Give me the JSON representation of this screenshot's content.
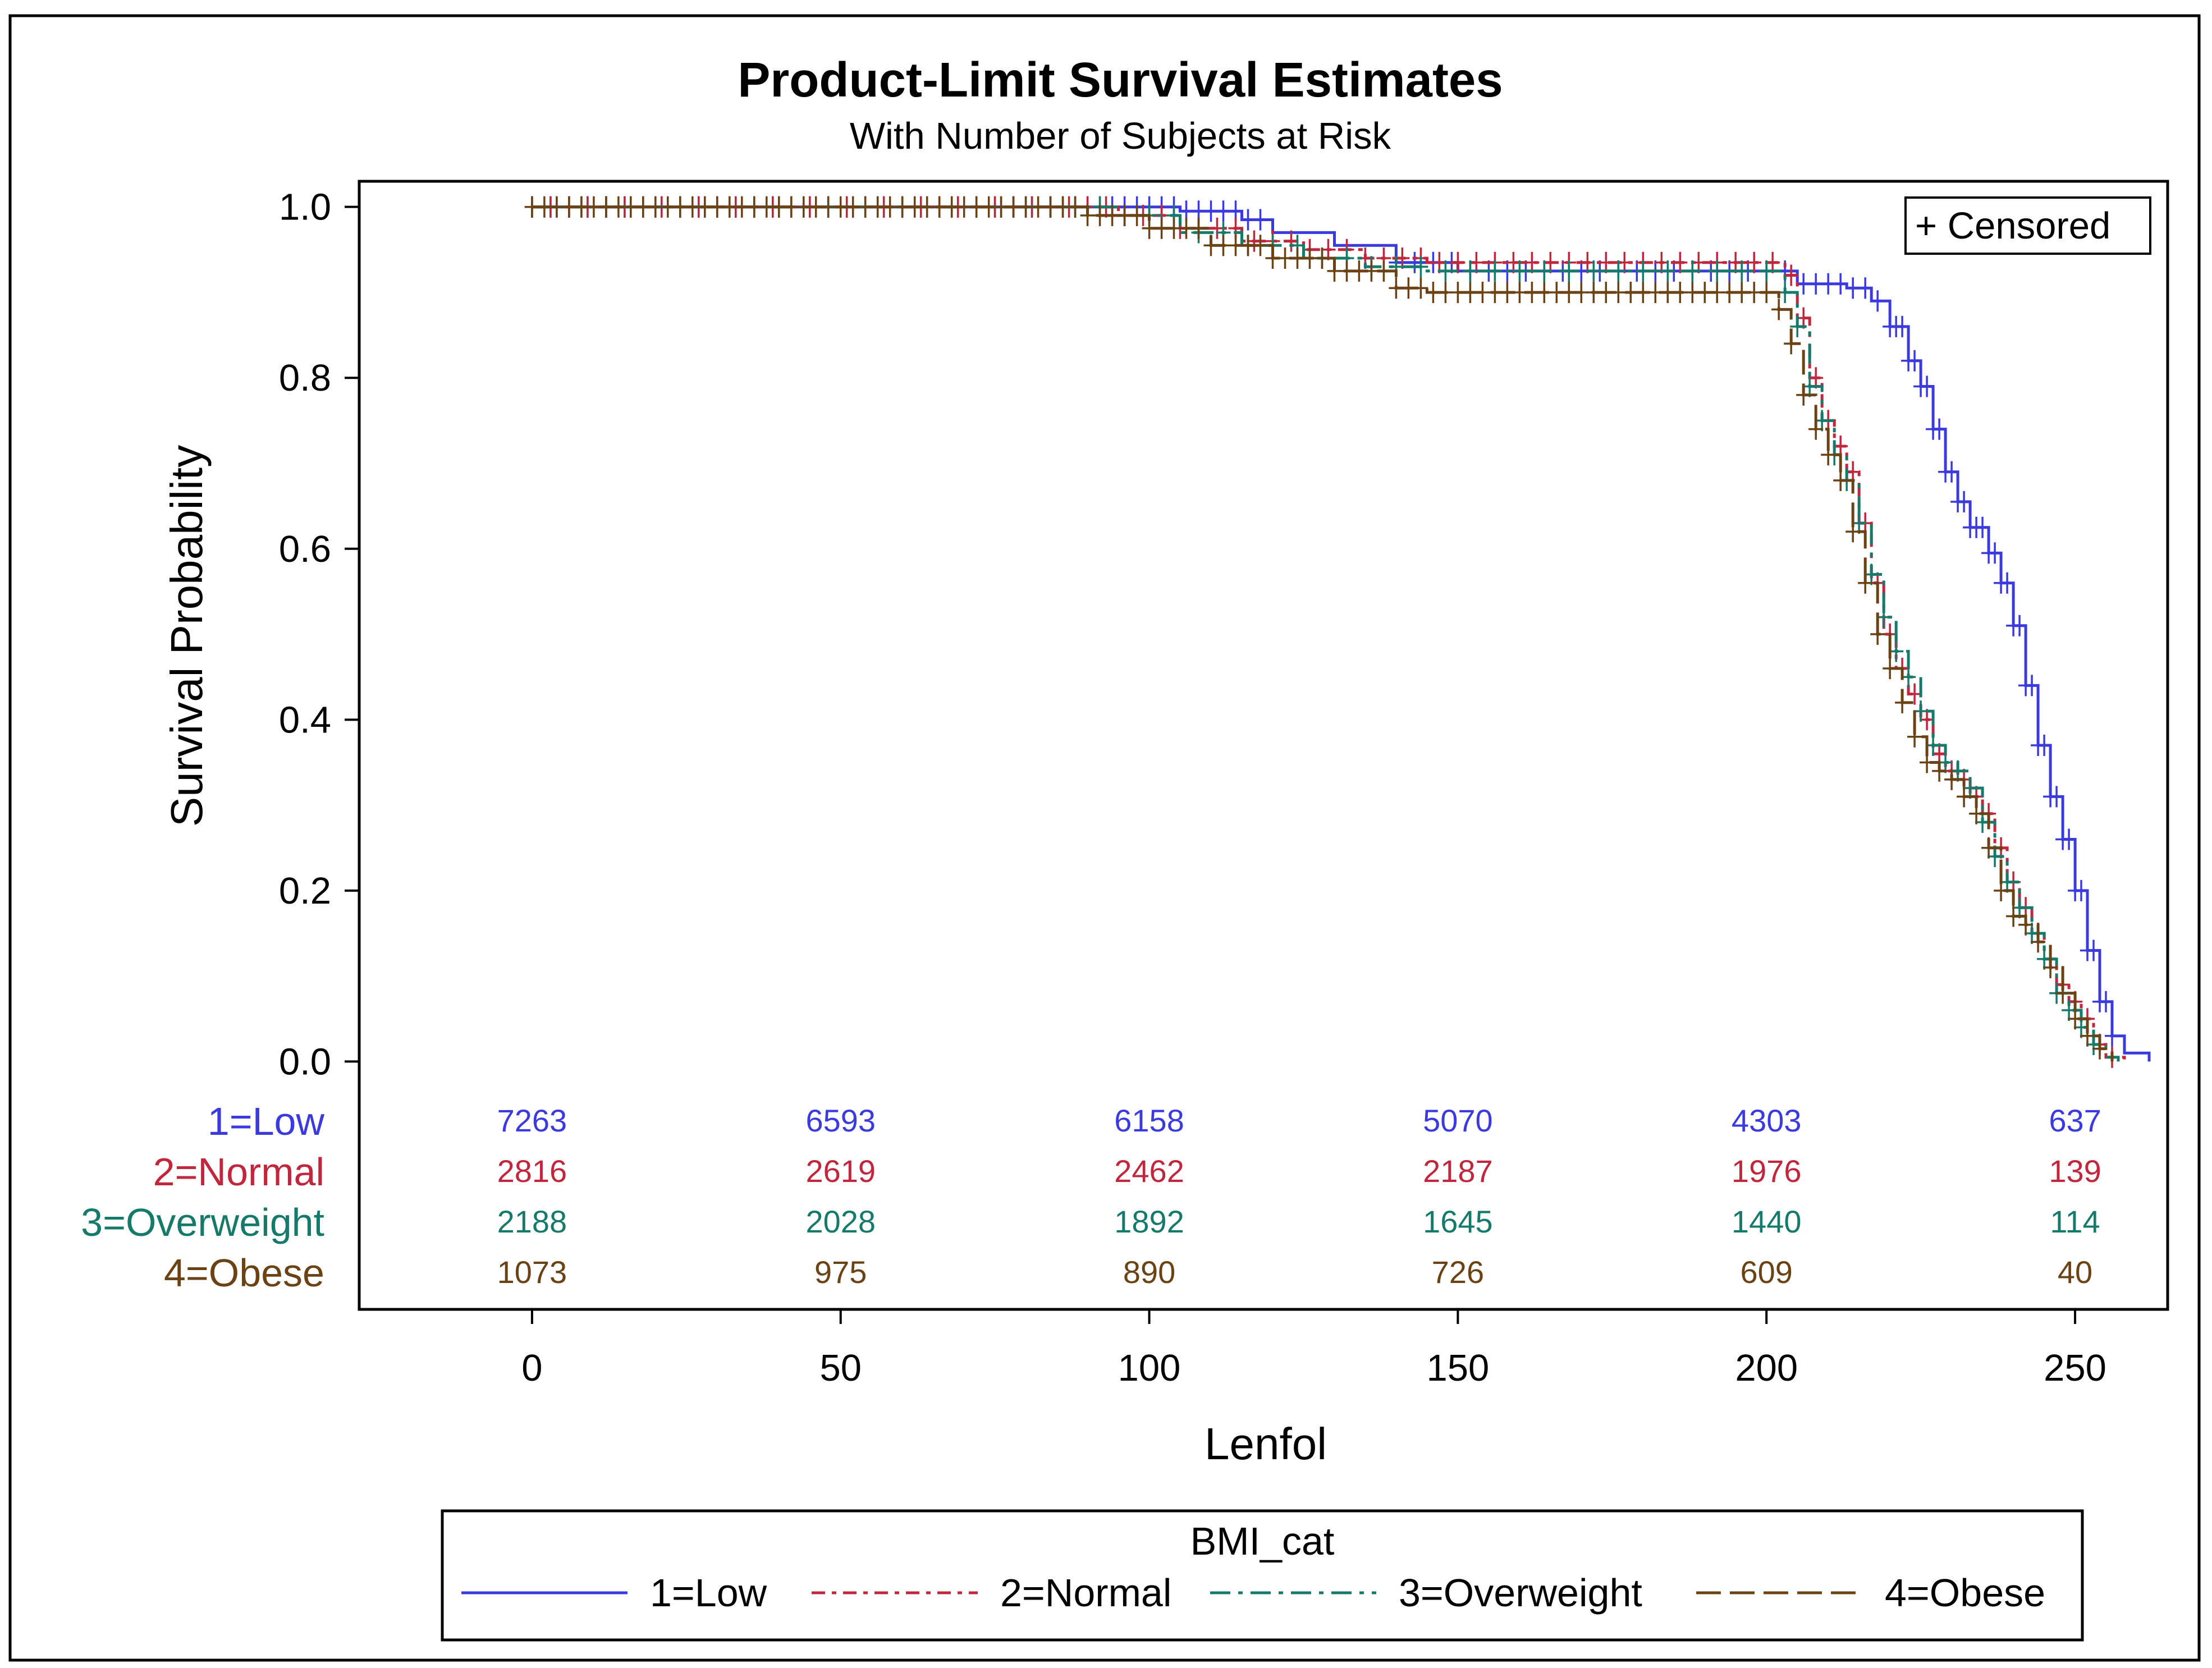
{
  "chart_data": {
    "type": "line",
    "title": "Product-Limit Survival Estimates",
    "subtitle": "With Number of Subjects at Risk",
    "xlabel": "Lenfol",
    "ylabel": "Survival Probability",
    "xlim": [
      -28,
      265
    ],
    "ylim": [
      -0.29,
      1.03
    ],
    "x_ticks": [
      "0",
      "50",
      "100",
      "150",
      "200",
      "250"
    ],
    "y_ticks": [
      "0.0",
      "0.2",
      "0.4",
      "0.6",
      "0.8",
      "1.0"
    ],
    "censored_legend": "+ Censored",
    "legend_title": "BMI_cat",
    "legend_position": "bottom",
    "series": [
      {
        "name": "1=Low",
        "color": "#3a3adf",
        "dash": "",
        "points": [
          [
            0,
            1.0
          ],
          [
            85,
            1.0
          ],
          [
            105,
            0.995
          ],
          [
            115,
            0.985
          ],
          [
            120,
            0.97
          ],
          [
            130,
            0.955
          ],
          [
            140,
            0.935
          ],
          [
            150,
            0.925
          ],
          [
            200,
            0.925
          ],
          [
            205,
            0.91
          ],
          [
            213,
            0.905
          ],
          [
            217,
            0.89
          ],
          [
            220,
            0.86
          ],
          [
            223,
            0.82
          ],
          [
            225,
            0.79
          ],
          [
            227,
            0.74
          ],
          [
            229,
            0.69
          ],
          [
            231,
            0.655
          ],
          [
            233,
            0.625
          ],
          [
            236,
            0.595
          ],
          [
            238,
            0.56
          ],
          [
            240,
            0.51
          ],
          [
            242,
            0.44
          ],
          [
            244,
            0.37
          ],
          [
            246,
            0.31
          ],
          [
            248,
            0.26
          ],
          [
            250,
            0.2
          ],
          [
            252,
            0.13
          ],
          [
            254,
            0.07
          ],
          [
            256,
            0.03
          ],
          [
            258,
            0.01
          ],
          [
            262,
            0.0
          ]
        ],
        "censored_x": [
          0,
          3,
          6,
          9,
          12,
          15,
          18,
          21,
          24,
          27,
          30,
          33,
          36,
          39,
          42,
          45,
          48,
          51,
          54,
          57,
          60,
          63,
          66,
          69,
          72,
          75,
          78,
          81,
          84,
          86,
          88,
          90,
          92,
          94,
          96,
          98,
          100,
          102,
          104,
          106,
          108,
          110,
          112,
          114,
          116,
          118,
          140,
          143,
          146,
          149,
          152,
          155,
          158,
          161,
          164,
          167,
          170,
          173,
          176,
          179,
          182,
          185,
          188,
          191,
          194,
          197,
          200,
          203,
          206,
          208,
          210,
          212,
          214,
          216,
          218,
          220,
          221,
          222,
          223,
          224,
          225,
          226,
          227,
          228,
          229,
          230,
          231,
          232,
          233,
          234,
          235,
          236,
          237,
          238,
          239,
          240,
          241,
          242,
          243,
          244,
          245,
          246,
          247,
          248,
          249,
          250,
          251,
          252,
          253,
          254,
          255,
          256
        ]
      },
      {
        "name": "2=Normal",
        "color": "#c0273d",
        "dash": "24 12 8 12",
        "points": [
          [
            0,
            1.0
          ],
          [
            85,
            1.0
          ],
          [
            95,
            0.99
          ],
          [
            105,
            0.975
          ],
          [
            115,
            0.96
          ],
          [
            125,
            0.95
          ],
          [
            135,
            0.94
          ],
          [
            145,
            0.935
          ],
          [
            200,
            0.935
          ],
          [
            203,
            0.92
          ],
          [
            205,
            0.87
          ],
          [
            207,
            0.8
          ],
          [
            209,
            0.75
          ],
          [
            211,
            0.72
          ],
          [
            213,
            0.69
          ],
          [
            215,
            0.63
          ],
          [
            217,
            0.56
          ],
          [
            219,
            0.5
          ],
          [
            221,
            0.46
          ],
          [
            223,
            0.43
          ],
          [
            225,
            0.4
          ],
          [
            227,
            0.36
          ],
          [
            229,
            0.34
          ],
          [
            231,
            0.33
          ],
          [
            233,
            0.31
          ],
          [
            235,
            0.29
          ],
          [
            237,
            0.25
          ],
          [
            239,
            0.21
          ],
          [
            241,
            0.18
          ],
          [
            243,
            0.15
          ],
          [
            245,
            0.12
          ],
          [
            247,
            0.09
          ],
          [
            249,
            0.07
          ],
          [
            251,
            0.05
          ],
          [
            253,
            0.02
          ],
          [
            255,
            0.005
          ],
          [
            258,
            0.0
          ]
        ],
        "censored_x": [
          0,
          3,
          6,
          9,
          12,
          15,
          18,
          21,
          24,
          27,
          30,
          33,
          36,
          39,
          42,
          45,
          48,
          51,
          54,
          57,
          60,
          63,
          66,
          69,
          72,
          75,
          78,
          81,
          84,
          87,
          90,
          93,
          96,
          99,
          102,
          105,
          108,
          111,
          114,
          117,
          120,
          123,
          126,
          129,
          132,
          135,
          138,
          141,
          144,
          147,
          150,
          153,
          156,
          159,
          162,
          165,
          168,
          171,
          174,
          177,
          180,
          183,
          186,
          189,
          192,
          195,
          198,
          201,
          204,
          206,
          208,
          210,
          212,
          214,
          216,
          218,
          220,
          222,
          224,
          226,
          228,
          230,
          232,
          234,
          236,
          238,
          240,
          242,
          244,
          246,
          248,
          250,
          252,
          254,
          256
        ]
      },
      {
        "name": "3=Overweight",
        "color": "#167a6a",
        "dash": "36 14 8 14",
        "points": [
          [
            0,
            1.0
          ],
          [
            85,
            1.0
          ],
          [
            95,
            0.99
          ],
          [
            105,
            0.97
          ],
          [
            115,
            0.955
          ],
          [
            125,
            0.94
          ],
          [
            135,
            0.93
          ],
          [
            145,
            0.925
          ],
          [
            200,
            0.925
          ],
          [
            203,
            0.9
          ],
          [
            205,
            0.86
          ],
          [
            207,
            0.79
          ],
          [
            209,
            0.75
          ],
          [
            211,
            0.71
          ],
          [
            213,
            0.68
          ],
          [
            215,
            0.63
          ],
          [
            217,
            0.57
          ],
          [
            219,
            0.52
          ],
          [
            221,
            0.48
          ],
          [
            223,
            0.45
          ],
          [
            225,
            0.41
          ],
          [
            227,
            0.37
          ],
          [
            229,
            0.35
          ],
          [
            231,
            0.34
          ],
          [
            233,
            0.32
          ],
          [
            235,
            0.28
          ],
          [
            237,
            0.24
          ],
          [
            239,
            0.21
          ],
          [
            241,
            0.18
          ],
          [
            243,
            0.15
          ],
          [
            245,
            0.12
          ],
          [
            247,
            0.08
          ],
          [
            249,
            0.06
          ],
          [
            251,
            0.04
          ],
          [
            253,
            0.02
          ],
          [
            255,
            0.005
          ],
          [
            257,
            0.0
          ]
        ],
        "censored_x": [
          0,
          4,
          8,
          12,
          16,
          20,
          24,
          28,
          32,
          36,
          40,
          44,
          48,
          52,
          56,
          60,
          64,
          68,
          72,
          76,
          80,
          84,
          88,
          92,
          96,
          100,
          104,
          108,
          112,
          116,
          120,
          124,
          128,
          132,
          136,
          140,
          144,
          148,
          152,
          156,
          160,
          164,
          168,
          172,
          176,
          180,
          184,
          188,
          192,
          196,
          200,
          203,
          205,
          207,
          209,
          211,
          213,
          215,
          217,
          219,
          221,
          223,
          225,
          227,
          229,
          231,
          233,
          235,
          237,
          239,
          241,
          243,
          245,
          247,
          249,
          251,
          253
        ]
      },
      {
        "name": "4=Obese",
        "color": "#6b4214",
        "dash": "44 16",
        "points": [
          [
            0,
            1.0
          ],
          [
            85,
            1.0
          ],
          [
            90,
            0.99
          ],
          [
            100,
            0.975
          ],
          [
            110,
            0.955
          ],
          [
            120,
            0.94
          ],
          [
            130,
            0.925
          ],
          [
            140,
            0.905
          ],
          [
            145,
            0.9
          ],
          [
            200,
            0.9
          ],
          [
            202,
            0.88
          ],
          [
            204,
            0.84
          ],
          [
            206,
            0.78
          ],
          [
            208,
            0.74
          ],
          [
            210,
            0.71
          ],
          [
            212,
            0.68
          ],
          [
            214,
            0.62
          ],
          [
            216,
            0.56
          ],
          [
            218,
            0.5
          ],
          [
            220,
            0.46
          ],
          [
            222,
            0.42
          ],
          [
            224,
            0.38
          ],
          [
            226,
            0.35
          ],
          [
            228,
            0.34
          ],
          [
            230,
            0.33
          ],
          [
            232,
            0.31
          ],
          [
            234,
            0.29
          ],
          [
            236,
            0.25
          ],
          [
            238,
            0.2
          ],
          [
            240,
            0.17
          ],
          [
            242,
            0.16
          ],
          [
            244,
            0.14
          ],
          [
            246,
            0.11
          ],
          [
            248,
            0.08
          ],
          [
            250,
            0.05
          ],
          [
            252,
            0.03
          ],
          [
            254,
            0.015
          ],
          [
            256,
            0.0
          ]
        ],
        "censored_x": [
          0,
          2,
          4,
          6,
          8,
          10,
          12,
          14,
          16,
          18,
          20,
          22,
          24,
          26,
          28,
          30,
          32,
          34,
          36,
          38,
          40,
          42,
          44,
          46,
          48,
          50,
          52,
          54,
          56,
          58,
          60,
          62,
          64,
          66,
          68,
          70,
          72,
          74,
          76,
          78,
          80,
          82,
          84,
          86,
          88,
          90,
          92,
          94,
          96,
          98,
          100,
          102,
          104,
          106,
          108,
          110,
          112,
          114,
          116,
          118,
          120,
          122,
          124,
          126,
          128,
          130,
          132,
          134,
          136,
          138,
          140,
          142,
          144,
          146,
          148,
          150,
          152,
          154,
          156,
          158,
          160,
          162,
          164,
          166,
          168,
          170,
          172,
          174,
          176,
          178,
          180,
          182,
          184,
          186,
          188,
          190,
          192,
          194,
          196,
          198,
          200,
          202,
          204,
          206,
          208,
          210,
          212,
          214,
          216,
          218,
          220,
          222,
          224,
          226,
          228,
          230,
          232,
          234,
          236,
          238,
          240,
          242,
          244,
          246,
          248,
          250,
          252,
          254
        ]
      }
    ],
    "at_risk": {
      "x": [
        0,
        50,
        100,
        150,
        200,
        250
      ],
      "rows": [
        {
          "label": "1=Low",
          "color": "#3a3adf",
          "values": [
            "7263",
            "6593",
            "6158",
            "5070",
            "4303",
            "637"
          ]
        },
        {
          "label": "2=Normal",
          "color": "#c0273d",
          "values": [
            "2816",
            "2619",
            "2462",
            "2187",
            "1976",
            "139"
          ]
        },
        {
          "label": "3=Overweight",
          "color": "#167a6a",
          "values": [
            "2188",
            "2028",
            "1892",
            "1645",
            "1440",
            "114"
          ]
        },
        {
          "label": "4=Obese",
          "color": "#6b4214",
          "values": [
            "1073",
            "975",
            "890",
            "726",
            "609",
            "40"
          ]
        }
      ]
    }
  }
}
